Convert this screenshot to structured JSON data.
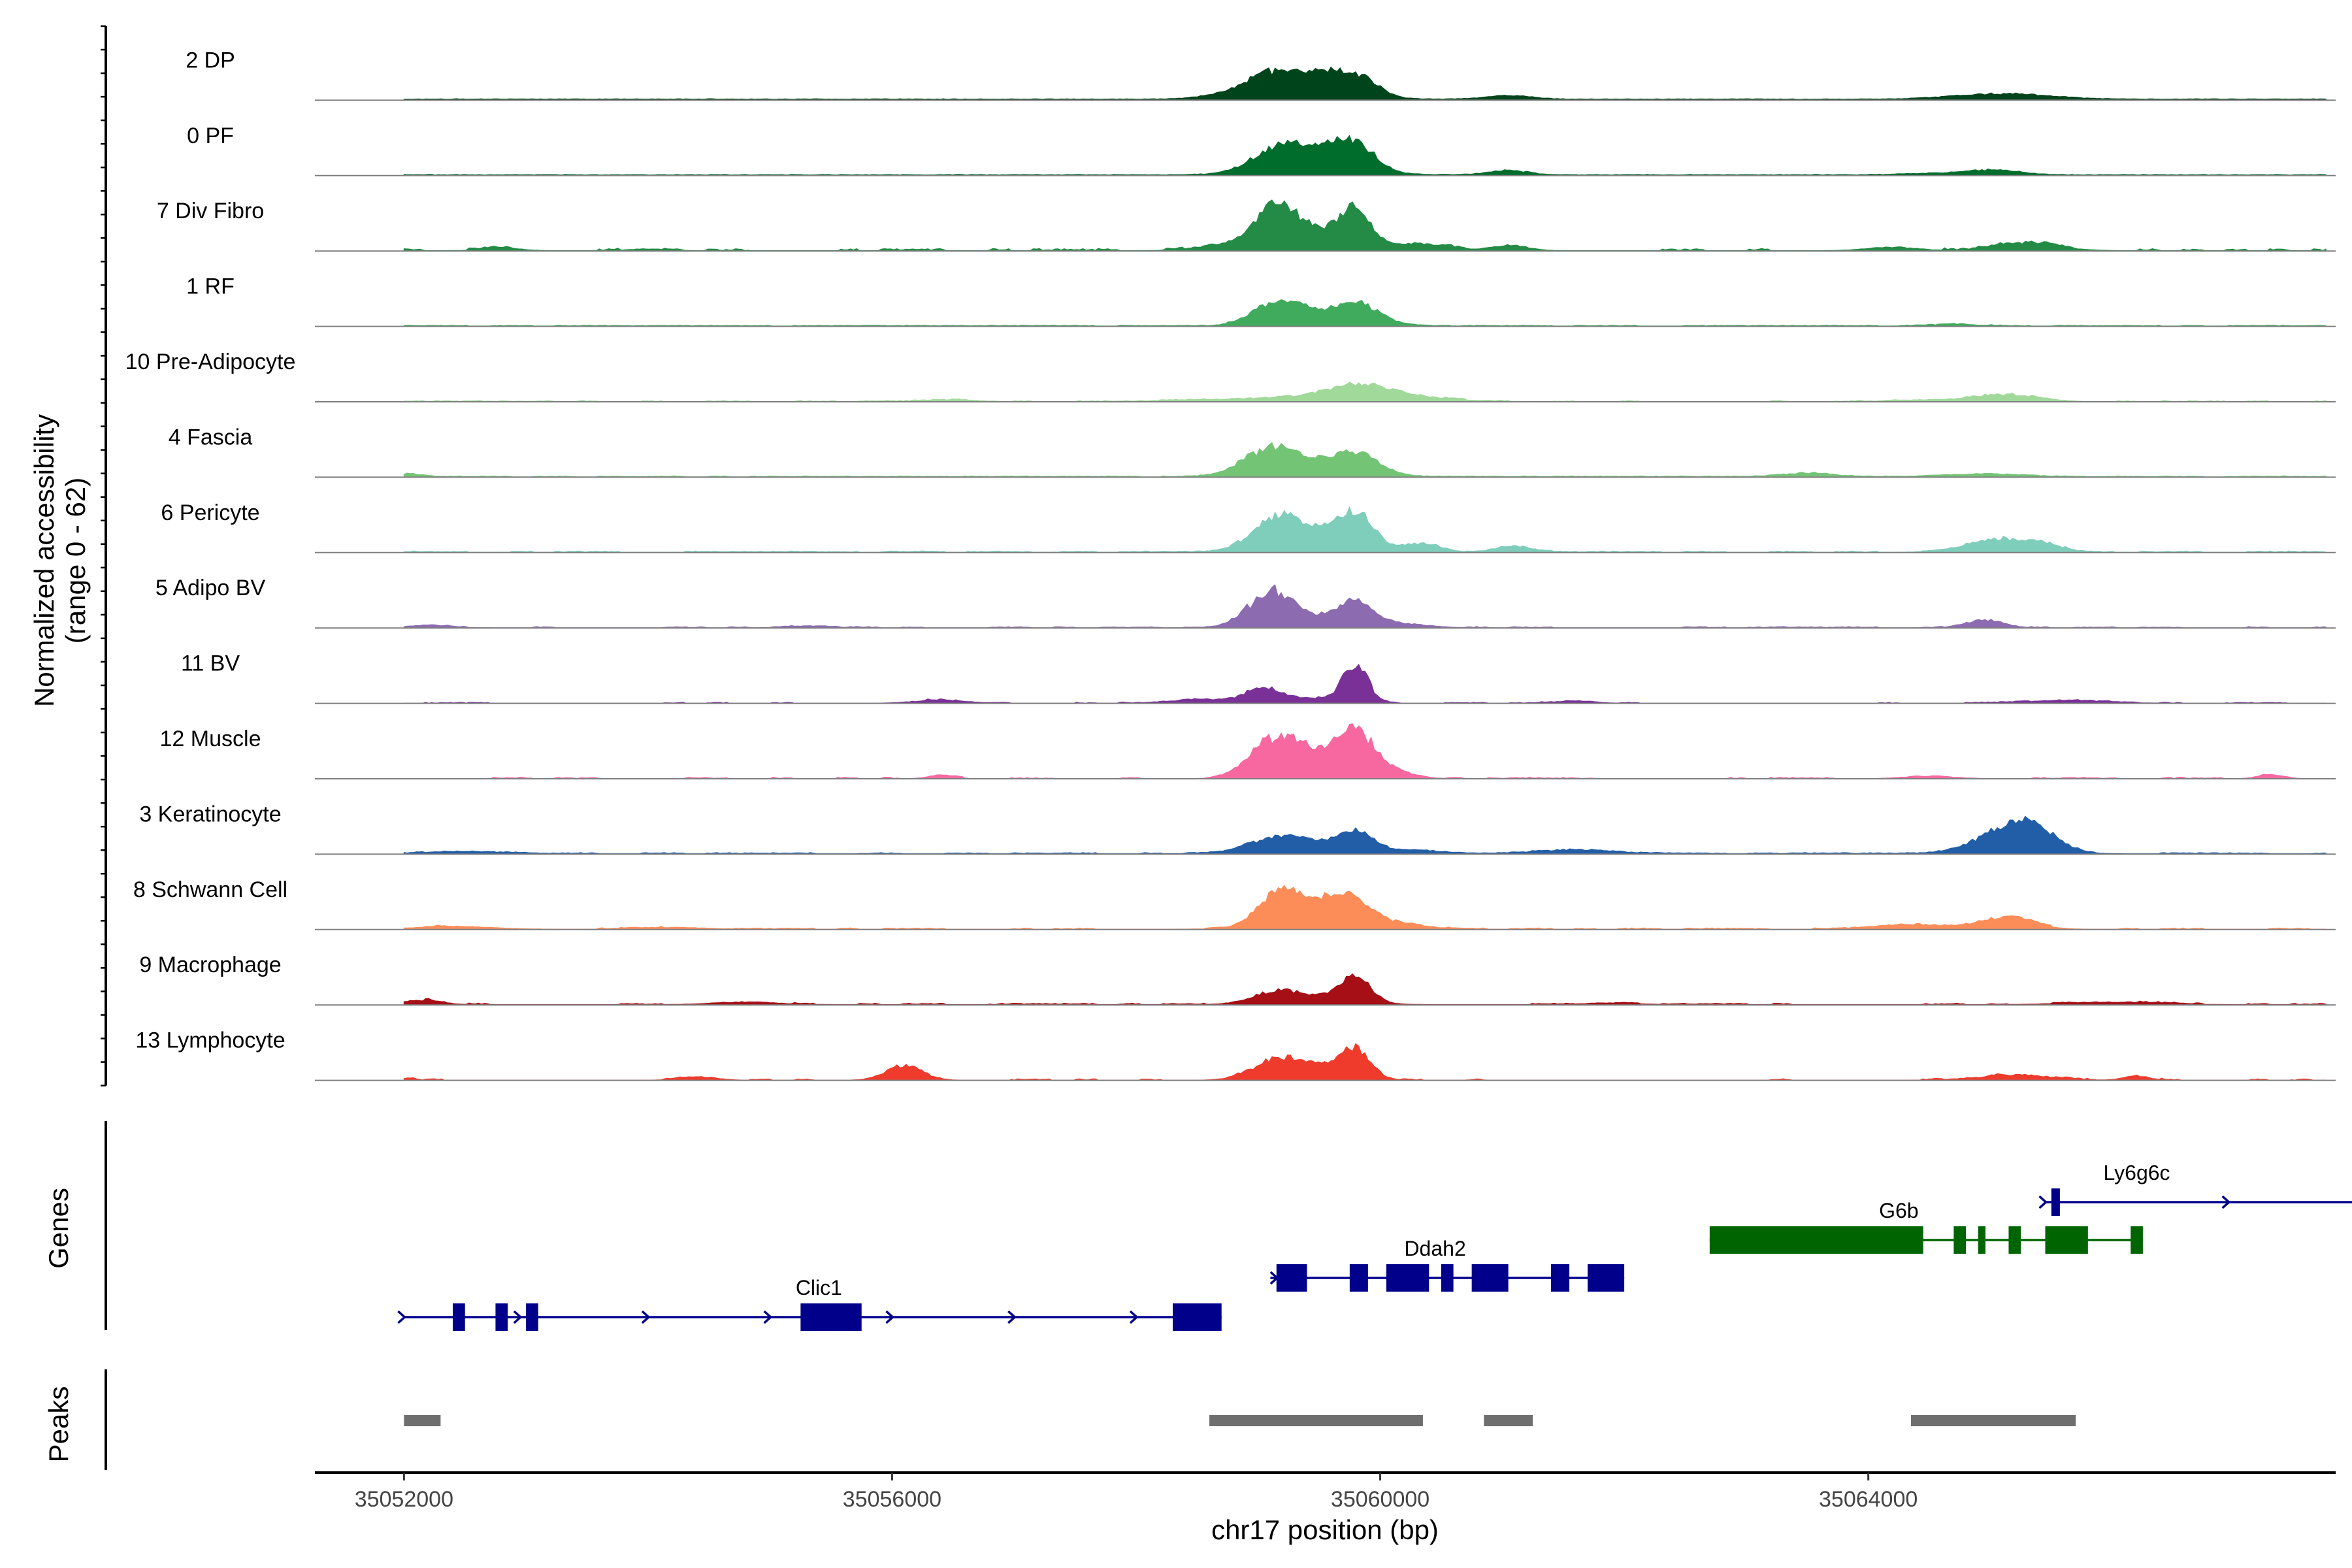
{
  "chart_data": {
    "type": "genome-coverage",
    "chromosome": "chr17",
    "xlabel": "chr17 position (bp)",
    "ylabel": [
      "Normalized accessibility",
      "(range 0 - 62)"
    ],
    "y_range": [
      0,
      62
    ],
    "xlim": [
      35051270,
      35067830
    ],
    "xticks": [
      35052000,
      35056000,
      35060000,
      35064000
    ],
    "xtick_labels": [
      "35052000",
      "35056000",
      "35060000",
      "35064000"
    ],
    "tracks": [
      {
        "name": "2 DP",
        "color": "#00441b",
        "base": 1.0,
        "noise": 0.5,
        "density": 1.0,
        "peaks": [
          [
            35059100,
            200,
            24
          ],
          [
            35059550,
            180,
            21
          ],
          [
            35059850,
            150,
            18
          ],
          [
            35059350,
            380,
            8
          ],
          [
            35061050,
            180,
            4
          ],
          [
            35065200,
            350,
            5
          ],
          [
            35064800,
            300,
            2
          ],
          [
            35058700,
            200,
            3
          ]
        ]
      },
      {
        "name": "0 PF",
        "color": "#006d2c",
        "base": 0.6,
        "noise": 0.6,
        "density": 1.0,
        "peaks": [
          [
            35059150,
            200,
            25
          ],
          [
            35059800,
            160,
            28
          ],
          [
            35059500,
            180,
            17
          ],
          [
            35059450,
            400,
            8
          ],
          [
            35061050,
            160,
            5
          ],
          [
            35065050,
            200,
            5
          ],
          [
            35064600,
            300,
            2
          ]
        ]
      },
      {
        "name": "7 Div Fibro",
        "color": "#238b45",
        "base": 0.5,
        "noise": 1.8,
        "density": 0.45,
        "peaks": [
          [
            35059150,
            150,
            42
          ],
          [
            35059800,
            130,
            37
          ],
          [
            35059450,
            300,
            20
          ],
          [
            35058800,
            250,
            8
          ],
          [
            35060350,
            200,
            8
          ],
          [
            35061050,
            150,
            6
          ],
          [
            35065300,
            250,
            9
          ],
          [
            35064200,
            200,
            4
          ],
          [
            35052800,
            150,
            3
          ],
          [
            35054000,
            150,
            2
          ]
        ]
      },
      {
        "name": "1 RF",
        "color": "#41ab5d",
        "base": 0.5,
        "noise": 0.7,
        "density": 0.85,
        "peaks": [
          [
            35059150,
            200,
            21
          ],
          [
            35059800,
            150,
            18
          ],
          [
            35059500,
            300,
            12
          ],
          [
            35060000,
            150,
            4
          ],
          [
            35064700,
            200,
            2
          ]
        ]
      },
      {
        "name": "10 Pre-Adipocyte",
        "color": "#a1d99b",
        "base": 0.3,
        "noise": 0.9,
        "density": 0.5,
        "peaks": [
          [
            35059850,
            250,
            14
          ],
          [
            35059500,
            400,
            6
          ],
          [
            35065150,
            250,
            8
          ],
          [
            35060300,
            350,
            4
          ],
          [
            35064500,
            300,
            2
          ],
          [
            35058600,
            300,
            2
          ],
          [
            35056500,
            200,
            2
          ]
        ]
      },
      {
        "name": "4 Fascia",
        "color": "#74c476",
        "base": 0.5,
        "noise": 0.7,
        "density": 0.9,
        "peaks": [
          [
            35059100,
            220,
            26
          ],
          [
            35059800,
            180,
            20
          ],
          [
            35059450,
            350,
            12
          ],
          [
            35063500,
            200,
            4
          ],
          [
            35064950,
            300,
            3
          ],
          [
            35052050,
            100,
            3
          ]
        ]
      },
      {
        "name": "6 Pericyte",
        "color": "#7fcdbb",
        "base": 0.5,
        "noise": 1.0,
        "density": 0.7,
        "peaks": [
          [
            35059150,
            200,
            30
          ],
          [
            35059800,
            150,
            38
          ],
          [
            35059450,
            300,
            18
          ],
          [
            35060350,
            150,
            9
          ],
          [
            35061100,
            150,
            6
          ],
          [
            35065100,
            220,
            13
          ],
          [
            35065450,
            150,
            7
          ],
          [
            35064800,
            200,
            3
          ]
        ]
      },
      {
        "name": "5 Adipo BV",
        "color": "#8c6bb1",
        "base": 0.4,
        "noise": 0.9,
        "density": 0.5,
        "peaks": [
          [
            35059100,
            180,
            36
          ],
          [
            35059800,
            150,
            23
          ],
          [
            35059450,
            300,
            10
          ],
          [
            35060200,
            200,
            4
          ],
          [
            35064950,
            150,
            9
          ],
          [
            35052200,
            150,
            3
          ],
          [
            35055300,
            150,
            2
          ]
        ]
      },
      {
        "name": "11 BV",
        "color": "#7a3197",
        "base": 0.2,
        "noise": 0.9,
        "density": 0.35,
        "peaks": [
          [
            35059800,
            100,
            42
          ],
          [
            35059050,
            150,
            17
          ],
          [
            35059500,
            200,
            6
          ],
          [
            35058500,
            250,
            4
          ],
          [
            35056400,
            200,
            4
          ],
          [
            35065600,
            350,
            3
          ],
          [
            35061600,
            150,
            3
          ]
        ]
      },
      {
        "name": "12 Muscle",
        "color": "#f768a1",
        "base": 0.2,
        "noise": 1.2,
        "density": 0.3,
        "peaks": [
          [
            35059150,
            200,
            38
          ],
          [
            35059800,
            150,
            44
          ],
          [
            35059500,
            300,
            22
          ],
          [
            35060150,
            150,
            6
          ],
          [
            35056400,
            100,
            4
          ],
          [
            35064500,
            200,
            3
          ],
          [
            35067300,
            100,
            5
          ]
        ]
      },
      {
        "name": "3 Keratinocyte",
        "color": "#225ea8",
        "base": 0.6,
        "noise": 0.9,
        "density": 0.8,
        "peaks": [
          [
            35059150,
            220,
            14
          ],
          [
            35059800,
            150,
            20
          ],
          [
            35059450,
            350,
            8
          ],
          [
            35065100,
            250,
            21
          ],
          [
            35065350,
            200,
            22
          ],
          [
            35061600,
            300,
            4
          ],
          [
            35052500,
            300,
            2
          ],
          [
            35060300,
            200,
            3
          ]
        ]
      },
      {
        "name": "8 Schwann Cell",
        "color": "#fc8d59",
        "base": 0.5,
        "noise": 1.0,
        "density": 0.6,
        "peaks": [
          [
            35059150,
            160,
            32
          ],
          [
            35059500,
            200,
            20
          ],
          [
            35059800,
            150,
            24
          ],
          [
            35059450,
            350,
            10
          ],
          [
            35065150,
            200,
            14
          ],
          [
            35064400,
            300,
            5
          ],
          [
            35052400,
            300,
            3
          ],
          [
            35054200,
            250,
            2
          ],
          [
            35060200,
            200,
            5
          ]
        ]
      },
      {
        "name": "9 Macrophage",
        "color": "#a50f15",
        "base": 0.5,
        "noise": 1.2,
        "density": 0.45,
        "peaks": [
          [
            35059800,
            120,
            28
          ],
          [
            35059150,
            200,
            12
          ],
          [
            35059500,
            300,
            7
          ],
          [
            35052150,
            150,
            5
          ],
          [
            35054800,
            250,
            3
          ],
          [
            35061900,
            200,
            2
          ],
          [
            35066000,
            350,
            3
          ]
        ]
      },
      {
        "name": "13 Lymphocyte",
        "color": "#ef3b2c",
        "base": 0.2,
        "noise": 1.2,
        "density": 0.22,
        "peaks": [
          [
            35059800,
            120,
            30
          ],
          [
            35059150,
            200,
            20
          ],
          [
            35059500,
            250,
            14
          ],
          [
            35056100,
            150,
            16
          ],
          [
            35054400,
            150,
            4
          ],
          [
            35065200,
            300,
            6
          ],
          [
            35066200,
            100,
            5
          ],
          [
            35052050,
            50,
            3
          ]
        ]
      }
    ],
    "genes": {
      "title": "Genes",
      "items": [
        {
          "name": "Clic1",
          "color": "#00008b",
          "start": 35052000,
          "end": 35058700,
          "strand": "+",
          "label_pos": 35055400,
          "row": "low",
          "exons": [
            [
              35052400,
              35052500
            ],
            [
              35052750,
              35052850
            ],
            [
              35053000,
              35053100
            ],
            [
              35055250,
              35055750
            ],
            [
              35058300,
              35058700
            ]
          ],
          "arrows": [
            35052000,
            35052950,
            35054000,
            35055000,
            35056000,
            35057000,
            35058000
          ]
        },
        {
          "name": "Ddah2",
          "color": "#00008b",
          "start": 35059100,
          "end": 35062000,
          "strand": "+",
          "label_pos": 35060450,
          "row": "mid",
          "exons": [
            [
              35059150,
              35059400
            ],
            [
              35059750,
              35059900
            ],
            [
              35060050,
              35060400
            ],
            [
              35060500,
              35060600
            ],
            [
              35060750,
              35061050
            ],
            [
              35061400,
              35061550
            ],
            [
              35061700,
              35062000
            ]
          ],
          "arrows": [
            35059150
          ]
        },
        {
          "name": "G6b",
          "color": "#006400",
          "start": 35062700,
          "end": 35066250,
          "strand": "",
          "label_pos": 35064250,
          "row": "upper",
          "exons": [
            [
              35062700,
              35064450
            ],
            [
              35064700,
              35064800
            ],
            [
              35064900,
              35064960
            ],
            [
              35065150,
              35065250
            ],
            [
              35065450,
              35065800
            ],
            [
              35066150,
              35066250
            ]
          ],
          "arrows": []
        },
        {
          "name": "Ly6g6c",
          "color": "#00008b",
          "start": 35065450,
          "end": 35068050,
          "strand": "+",
          "label_pos": 35066200,
          "row": "top",
          "exons": [
            [
              35065500,
              35065570
            ]
          ],
          "arrows": [
            35065450,
            35066950,
            35068050
          ]
        }
      ]
    },
    "peaks_track": {
      "title": "Peaks",
      "color": "#6e6e6e",
      "regions": [
        [
          35052000,
          35052300
        ],
        [
          35058600,
          35060350
        ],
        [
          35060850,
          35061250
        ],
        [
          35064350,
          35065700
        ]
      ]
    }
  }
}
